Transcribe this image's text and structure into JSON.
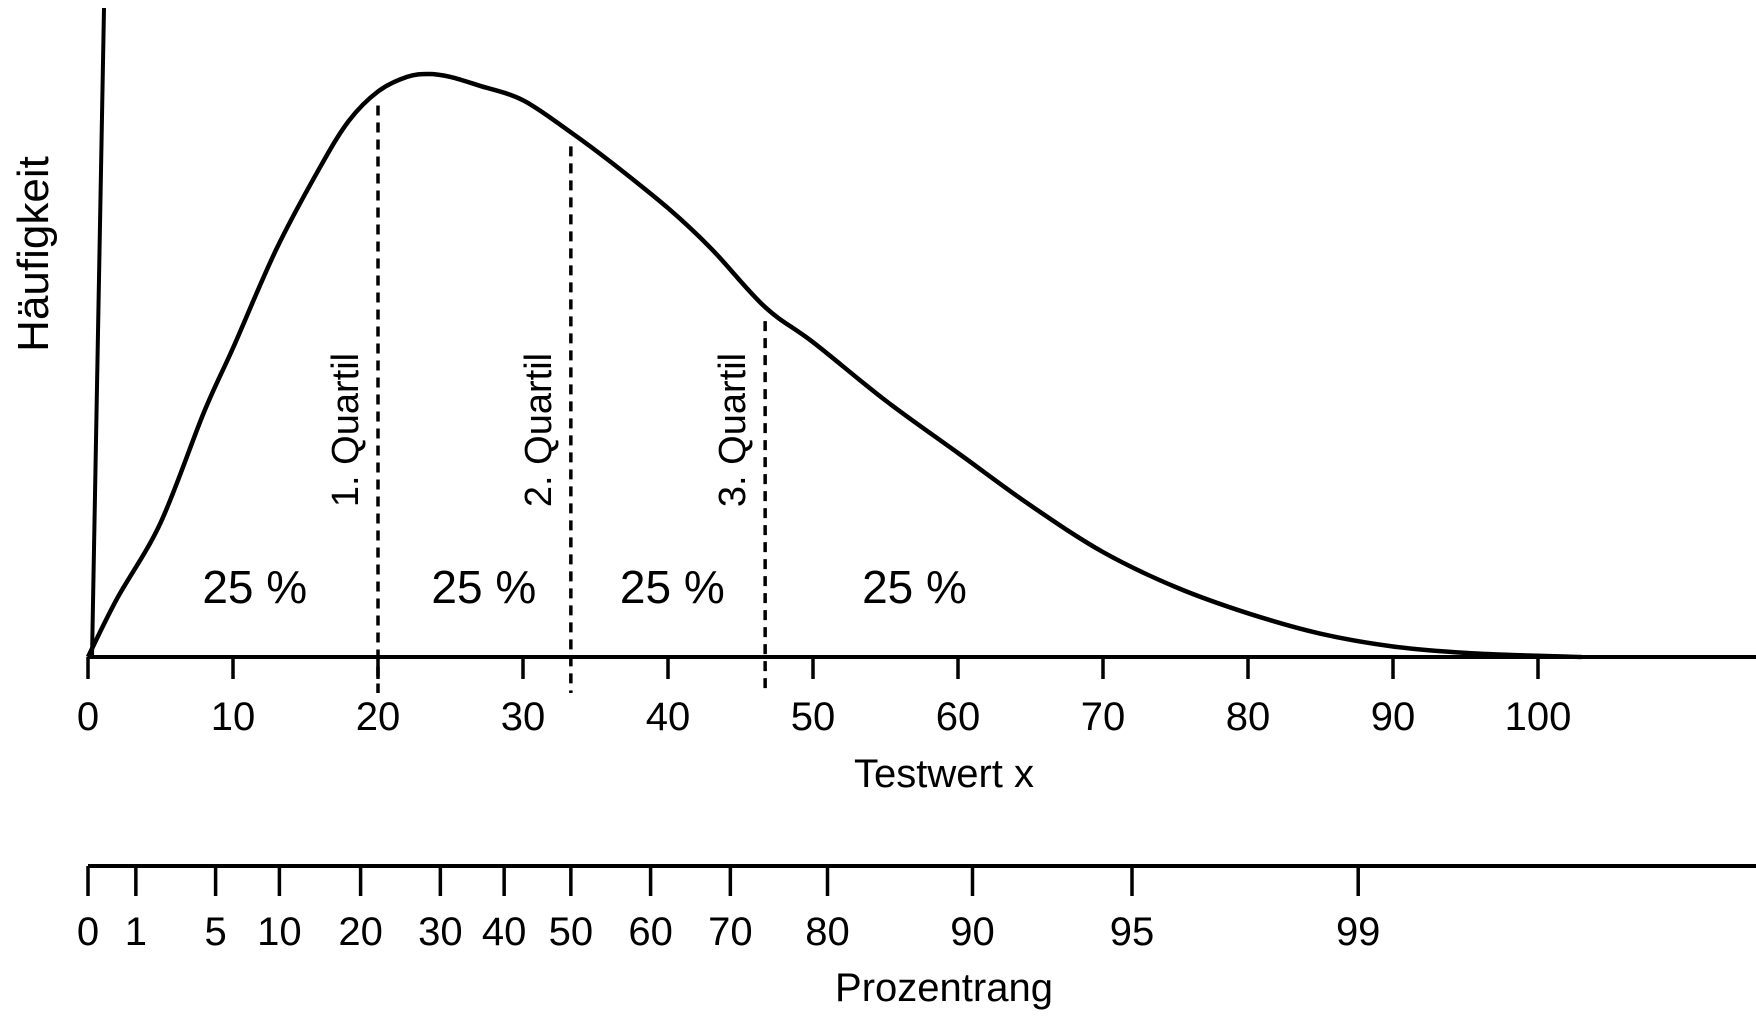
{
  "chart_data": {
    "type": "area",
    "xlabel": "Testwert x",
    "ylabel": "Häufigkeit",
    "x_ticks": [
      0,
      10,
      20,
      30,
      40,
      50,
      60,
      70,
      80,
      90,
      100
    ],
    "xlim": [
      0,
      115
    ],
    "curve": {
      "x": [
        0,
        2,
        5,
        8,
        10,
        13,
        16,
        18,
        20,
        22,
        23.5,
        25,
        27,
        30,
        33.3,
        36,
        40,
        43,
        46.7,
        50,
        55,
        60,
        65,
        70,
        75,
        80,
        85,
        90,
        95,
        100,
        103
      ],
      "y": [
        0,
        0.1,
        0.23,
        0.42,
        0.53,
        0.7,
        0.84,
        0.92,
        0.97,
        0.995,
        1.0,
        0.995,
        0.98,
        0.955,
        0.9,
        0.85,
        0.77,
        0.7,
        0.6,
        0.54,
        0.44,
        0.35,
        0.26,
        0.18,
        0.12,
        0.075,
        0.04,
        0.018,
        0.007,
        0.002,
        0.0
      ]
    },
    "quartiles": [
      {
        "label": "1. Quartil",
        "x": 20.0
      },
      {
        "label": "2. Quartil",
        "x": 33.3
      },
      {
        "label": "3. Quartil",
        "x": 46.7
      }
    ],
    "regions": [
      {
        "label": "25 %",
        "x": 11.5
      },
      {
        "label": "25 %",
        "x": 27.3
      },
      {
        "label": "25 %",
        "x": 40.3
      },
      {
        "label": "25 %",
        "x": 57.0
      }
    ],
    "percentile_scale": {
      "label": "Prozentrang",
      "ticks": [
        {
          "label": "0",
          "x": 0
        },
        {
          "label": "1",
          "x": 3.3
        },
        {
          "label": "5",
          "x": 8.8
        },
        {
          "label": "10",
          "x": 13.2
        },
        {
          "label": "20",
          "x": 18.8
        },
        {
          "label": "30",
          "x": 24.3
        },
        {
          "label": "40",
          "x": 28.7
        },
        {
          "label": "50",
          "x": 33.3
        },
        {
          "label": "60",
          "x": 38.8
        },
        {
          "label": "70",
          "x": 44.3
        },
        {
          "label": "80",
          "x": 51.0
        },
        {
          "label": "90",
          "x": 61.0
        },
        {
          "label": "95",
          "x": 72.0
        },
        {
          "label": "99",
          "x": 87.6
        }
      ]
    }
  }
}
